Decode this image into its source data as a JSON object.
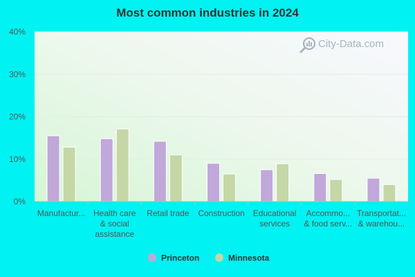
{
  "chart_data": {
    "type": "bar",
    "title": "Most common industries in 2024",
    "categories": [
      [
        "Manufactur..."
      ],
      [
        "Health care",
        "& social",
        "assistance"
      ],
      [
        "Retail trade"
      ],
      [
        "Construction"
      ],
      [
        "Educational",
        "services"
      ],
      [
        "Accommo...",
        "& food serv..."
      ],
      [
        "Transportat...",
        "& warehou..."
      ]
    ],
    "series": [
      {
        "name": "Princeton",
        "color": "#c0a8da",
        "values": [
          15.5,
          14.8,
          14.2,
          9.0,
          7.5,
          6.6,
          5.5
        ]
      },
      {
        "name": "Minnesota",
        "color": "#c5d7a6",
        "values": [
          12.8,
          17.1,
          11.0,
          6.5,
          8.9,
          5.2,
          4.0
        ]
      }
    ],
    "y_ticks": [
      "0%",
      "10%",
      "20%",
      "30%",
      "40%"
    ],
    "ylim": [
      0,
      40
    ],
    "grid": true,
    "legend": "bottom-center"
  },
  "watermark": {
    "text": "City-Data.com",
    "icon": "search-magnifier-icon"
  }
}
